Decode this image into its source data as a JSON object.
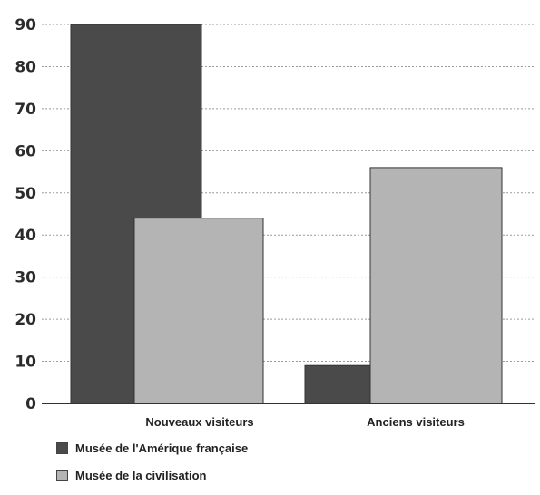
{
  "chart_data": {
    "type": "bar",
    "title": "",
    "xlabel": "",
    "ylabel": "",
    "ylim": [
      0,
      90
    ],
    "yticks": [
      0,
      10,
      20,
      30,
      40,
      50,
      60,
      70,
      80,
      90
    ],
    "grid": true,
    "legend_position": "bottom-left",
    "categories": [
      "Nouveaux visiteurs",
      "Anciens visiteurs"
    ],
    "series": [
      {
        "name": "Musée de l'Amérique française",
        "values": [
          90,
          9
        ],
        "color": "#4a4a4a"
      },
      {
        "name": "Musée de la civilisation",
        "values": [
          44,
          56
        ],
        "color": "#b4b4b4"
      }
    ]
  }
}
